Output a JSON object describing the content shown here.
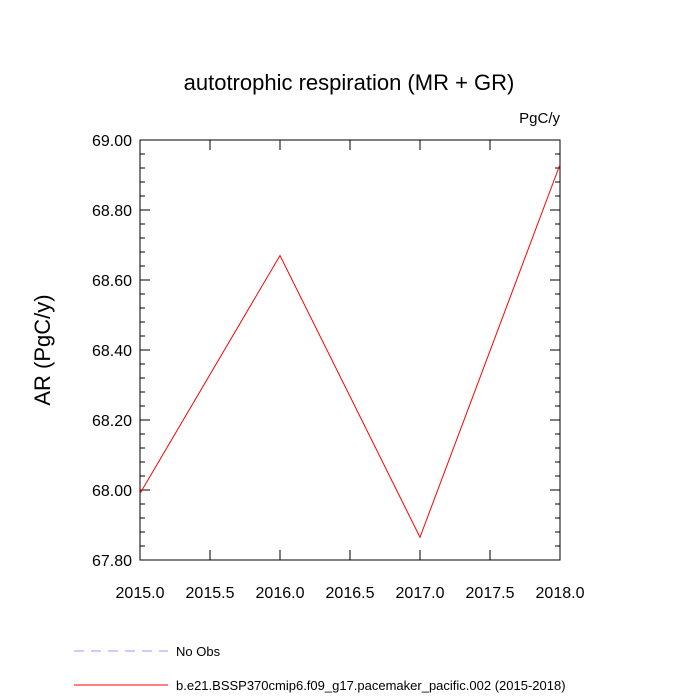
{
  "chart_data": {
    "type": "line",
    "title": "autotrophic respiration (MR + GR)",
    "units": "PgC/y",
    "ylabel": "AR  (PgC/y)",
    "xlabel": "",
    "xlim": [
      2015.0,
      2018.0
    ],
    "ylim": [
      67.8,
      69.0
    ],
    "x_ticks": [
      "2015.0",
      "2015.5",
      "2016.0",
      "2016.5",
      "2017.0",
      "2017.5",
      "2018.0"
    ],
    "y_ticks": [
      "67.80",
      "68.00",
      "68.20",
      "68.40",
      "68.60",
      "68.80",
      "69.00"
    ],
    "grid": false,
    "legend_position": "bottom",
    "series": [
      {
        "name": "b.e21.BSSP370cmip6.f09_g17.pacemaker_pacific.002 (2015-2018)",
        "color": "#ff0000",
        "style": "solid",
        "x": [
          2015,
          2016,
          2017,
          2018
        ],
        "y": [
          67.99,
          68.67,
          67.865,
          68.93
        ]
      }
    ],
    "legend": [
      {
        "label": "No Obs",
        "color": "#9999ff",
        "style": "dashed"
      },
      {
        "label": "b.e21.BSSP370cmip6.f09_g17.pacemaker_pacific.002 (2015-2018)",
        "color": "#ff0000",
        "style": "solid"
      }
    ]
  }
}
